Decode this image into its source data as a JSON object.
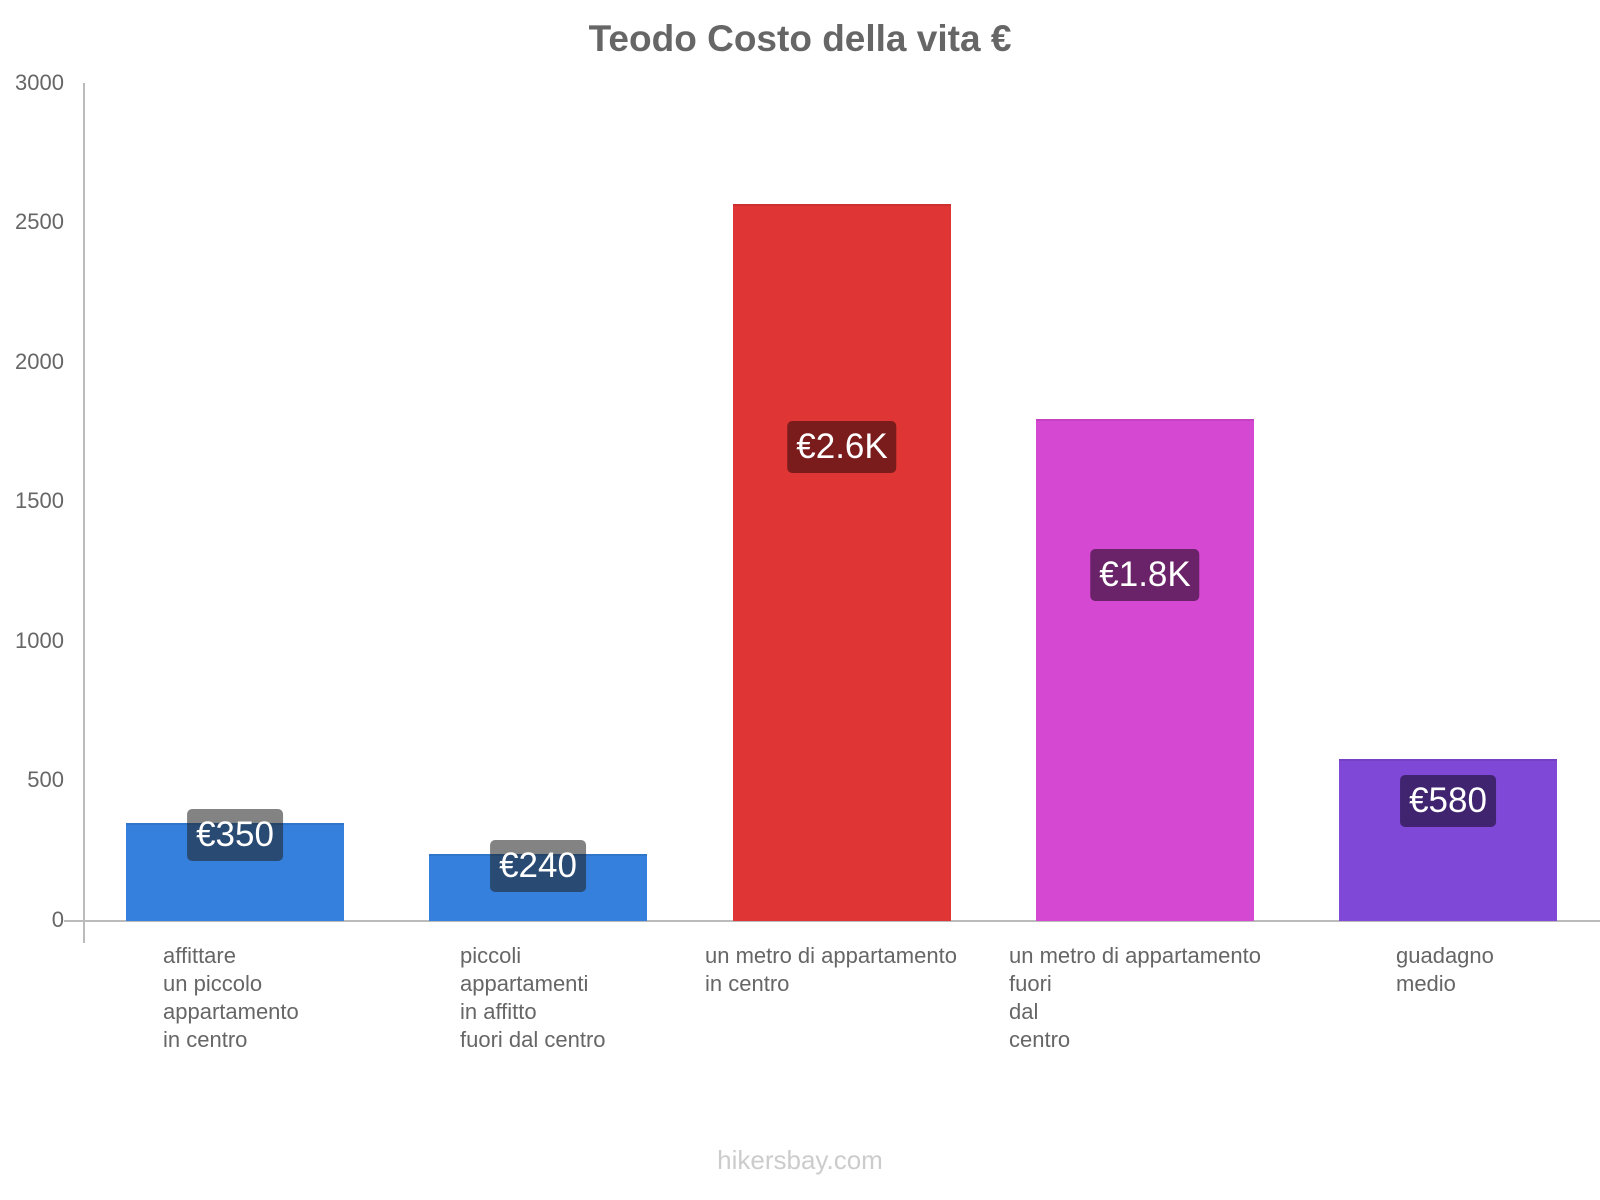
{
  "chart_data": {
    "type": "bar",
    "title": "Teodo Costo della vita €",
    "xlabel": "",
    "ylabel": "",
    "ylim": [
      0,
      3000
    ],
    "yticks": [
      "3000",
      "2500",
      "2000",
      "1500",
      "1000",
      "500",
      "0"
    ],
    "grid": false,
    "legend": null,
    "categories": [
      "affittare\nun piccolo\nappartamento\nin centro",
      "piccoli\nappartamenti\nin affitto\nfuori dal centro",
      "un metro di appartamento\nin centro",
      "un metro di appartamento\nfuori\ndal\ncentro",
      "guadagno\nmedio"
    ],
    "values": [
      350,
      240,
      2570,
      1800,
      580
    ],
    "value_labels": [
      "€350",
      "€240",
      "€2.6K",
      "€1.8K",
      "€580"
    ],
    "colors": [
      "#3580dc",
      "#3580dc",
      "#e03535",
      "#d548d2",
      "#8048d6"
    ],
    "label_box_colors": [
      "rgba(30,30,30,0.55)",
      "rgba(30,30,30,0.55)",
      "#7a1c1c",
      "#6a2268",
      "#402470"
    ]
  },
  "watermark": "hikersbay.com"
}
